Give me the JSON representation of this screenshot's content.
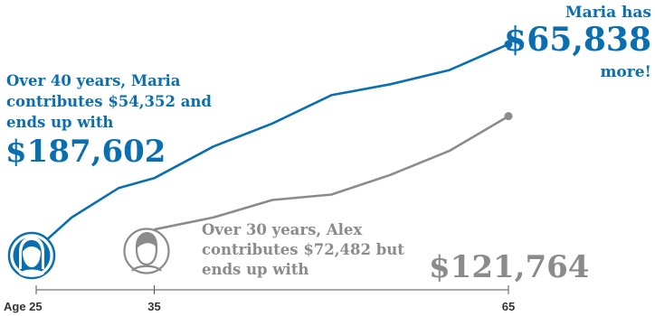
{
  "chart_data": {
    "type": "line",
    "title": "",
    "xlabel": "",
    "ylabel": "",
    "x_ticks": [
      {
        "value": 25,
        "label": "Age 25"
      },
      {
        "value": 35,
        "label": "35"
      },
      {
        "value": 65,
        "label": "65"
      }
    ],
    "xlim": [
      25,
      65
    ],
    "ylim": [
      0,
      187602
    ],
    "grid": false,
    "series": [
      {
        "name": "Maria",
        "color": "#0a6fb0",
        "points": [
          {
            "x": 25,
            "y": 0
          },
          {
            "x": 28,
            "y": 29000
          },
          {
            "x": 32,
            "y": 56000
          },
          {
            "x": 35,
            "y": 65000
          },
          {
            "x": 40,
            "y": 94000
          },
          {
            "x": 45,
            "y": 115000
          },
          {
            "x": 50,
            "y": 141000
          },
          {
            "x": 55,
            "y": 151000
          },
          {
            "x": 60,
            "y": 164000
          },
          {
            "x": 65,
            "y": 187602
          }
        ]
      },
      {
        "name": "Alex",
        "color": "#8b8b8b",
        "points": [
          {
            "x": 35,
            "y": 18000
          },
          {
            "x": 40,
            "y": 29000
          },
          {
            "x": 45,
            "y": 45000
          },
          {
            "x": 50,
            "y": 50000
          },
          {
            "x": 55,
            "y": 68000
          },
          {
            "x": 60,
            "y": 90000
          },
          {
            "x": 65,
            "y": 121764
          }
        ]
      }
    ],
    "annotations": {
      "maria_summary": "Over 40 years, Maria contributes $54,352 and ends up with",
      "maria_total": "$187,602",
      "difference_prefix": "Maria has",
      "difference_amount": "$65,838",
      "difference_suffix": "more!",
      "alex_summary": "Over 30 years, Alex contributes $72,482 but ends up with",
      "alex_total": "$121,764"
    }
  },
  "icons": {
    "maria": "woman-avatar-icon",
    "alex": "man-avatar-icon"
  },
  "colors": {
    "maria": "#0a6fb0",
    "alex": "#8b8b8b",
    "axis": "#555555"
  }
}
